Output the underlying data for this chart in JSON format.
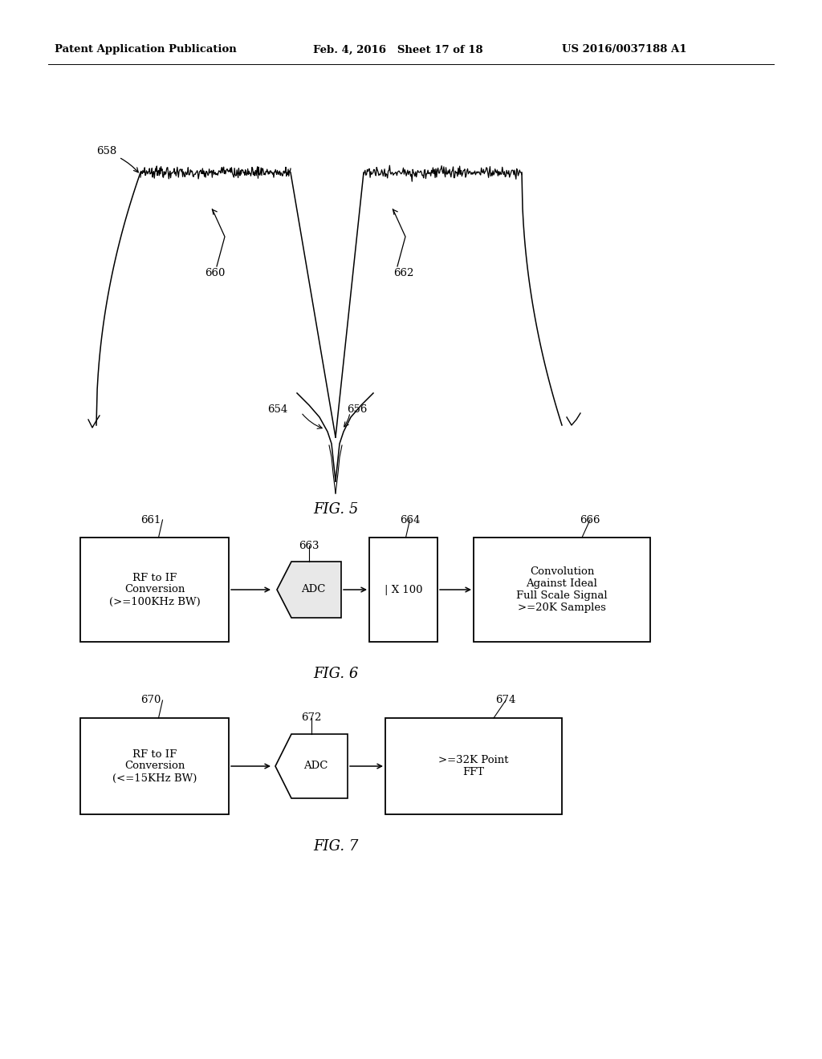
{
  "header_left": "Patent Application Publication",
  "header_mid": "Feb. 4, 2016   Sheet 17 of 18",
  "header_right": "US 2016/0037188 A1",
  "fig5_title": "FIG. 5",
  "fig6_title": "FIG. 6",
  "fig7_title": "FIG. 7",
  "label_658": "658",
  "label_660": "660",
  "label_662": "662",
  "label_654": "654",
  "label_656": "656",
  "label_661": "661",
  "label_663": "663",
  "label_664": "664",
  "label_666": "666",
  "label_670": "670",
  "label_672": "672",
  "label_674": "674",
  "box661_text": "RF to IF\nConversion\n(>=100KHz BW)",
  "box663_text": "ADC",
  "box664_text": "| X 100",
  "box666_text": "Convolution\nAgainst Ideal\nFull Scale Signal\n>=20K Samples",
  "box670_text": "RF to IF\nConversion\n(<=15KHz BW)",
  "box672_text": "ADC",
  "box674_text": ">=32K Point\nFFT",
  "bg_color": "#ffffff",
  "line_color": "#000000",
  "text_color": "#000000"
}
